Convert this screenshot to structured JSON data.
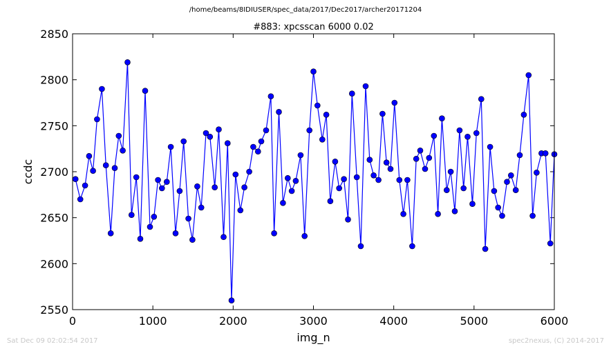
{
  "suptitle": "/home/beams/8IDIUSER/spec_data/2017/Dec2017/archer20171204",
  "timestamp": "Sat Dec 09 02:02:54 2017",
  "credit": "spec2nexus, (C) 2014-2017",
  "chart_data": {
    "type": "line",
    "title": "#883: xpcsscan 6000 0.02",
    "xlabel": "img_n",
    "ylabel": "ccdc",
    "xlim": [
      0,
      6000
    ],
    "ylim": [
      2550,
      2850
    ],
    "xticks": [
      0,
      1000,
      2000,
      3000,
      4000,
      5000,
      6000
    ],
    "yticks": [
      2550,
      2600,
      2650,
      2700,
      2750,
      2800,
      2850
    ],
    "grid": false,
    "marker": "circle",
    "color": "#0000ff",
    "x": [
      36,
      96,
      156,
      206,
      255,
      305,
      365,
      415,
      475,
      525,
      575,
      625,
      684,
      734,
      794,
      844,
      904,
      964,
      1014,
      1064,
      1113,
      1173,
      1223,
      1283,
      1333,
      1383,
      1443,
      1493,
      1553,
      1603,
      1661,
      1711,
      1771,
      1821,
      1881,
      1931,
      1980,
      2030,
      2090,
      2140,
      2200,
      2250,
      2310,
      2350,
      2410,
      2470,
      2510,
      2570,
      2620,
      2680,
      2730,
      2780,
      2840,
      2890,
      2950,
      3000,
      3050,
      3110,
      3160,
      3210,
      3270,
      3320,
      3380,
      3430,
      3480,
      3540,
      3590,
      3650,
      3700,
      3750,
      3810,
      3860,
      3910,
      3960,
      4010,
      4070,
      4120,
      4170,
      4230,
      4280,
      4330,
      4390,
      4440,
      4500,
      4550,
      4600,
      4660,
      4710,
      4760,
      4820,
      4870,
      4920,
      4980,
      5030,
      5090,
      5140,
      5200,
      5250,
      5300,
      5350,
      5410,
      5460,
      5520,
      5570,
      5620,
      5680,
      5730,
      5780,
      5840,
      5890,
      5950,
      6000
    ],
    "y": [
      2692,
      2670,
      2685,
      2717,
      2701,
      2757,
      2790,
      2707,
      2633,
      2704,
      2739,
      2723,
      2819,
      2653,
      2694,
      2627,
      2788,
      2640,
      2651,
      2691,
      2682,
      2689,
      2727,
      2633,
      2679,
      2733,
      2649,
      2626,
      2684,
      2661,
      2742,
      2738,
      2683,
      2746,
      2629,
      2731,
      2560,
      2697,
      2658,
      2683,
      2700,
      2727,
      2722,
      2733,
      2745,
      2782,
      2633,
      2765,
      2666,
      2693,
      2679,
      2690,
      2718,
      2630,
      2745,
      2809,
      2772,
      2735,
      2762,
      2668,
      2711,
      2682,
      2692,
      2648,
      2785,
      2694,
      2619,
      2793,
      2713,
      2696,
      2691,
      2763,
      2710,
      2703,
      2775,
      2691,
      2654,
      2691,
      2619,
      2714,
      2723,
      2703,
      2715,
      2739,
      2654,
      2758,
      2680,
      2700,
      2657,
      2745,
      2682,
      2738,
      2665,
      2742,
      2779,
      2616,
      2727,
      2679,
      2661,
      2652,
      2689,
      2696,
      2680,
      2718,
      2762,
      2805,
      2652,
      2699,
      2720,
      2720,
      2622,
      2719
    ]
  }
}
